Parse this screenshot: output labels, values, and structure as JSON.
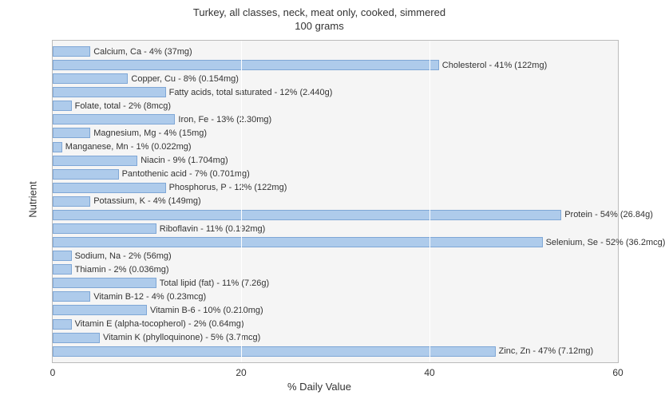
{
  "chart": {
    "type": "bar",
    "title_line1": "Turkey, all classes, neck, meat only, cooked, simmered",
    "title_line2": "100 grams",
    "title_fontsize": 13,
    "x_axis_label": "% Daily Value",
    "y_axis_label": "Nutrient",
    "label_fontsize": 13,
    "xlim": [
      0,
      60
    ],
    "xtick_step": 20,
    "xticks": [
      0,
      20,
      40,
      60
    ],
    "background_color": "#ffffff",
    "plot_background": "#f5f5f5",
    "grid_color": "#ffffff",
    "border_color": "#bbbbbb",
    "bar_fill": "#aecbeb",
    "bar_border": "#7fa7d6",
    "bar_label_fontsize": 11,
    "nutrients": [
      {
        "name": "Calcium, Ca",
        "pct": 4,
        "amount": "37mg",
        "label": "Calcium, Ca - 4% (37mg)"
      },
      {
        "name": "Cholesterol",
        "pct": 41,
        "amount": "122mg",
        "label": "Cholesterol - 41% (122mg)"
      },
      {
        "name": "Copper, Cu",
        "pct": 8,
        "amount": "0.154mg",
        "label": "Copper, Cu - 8% (0.154mg)"
      },
      {
        "name": "Fatty acids, total saturated",
        "pct": 12,
        "amount": "2.440g",
        "label": "Fatty acids, total saturated - 12% (2.440g)"
      },
      {
        "name": "Folate, total",
        "pct": 2,
        "amount": "8mcg",
        "label": "Folate, total - 2% (8mcg)"
      },
      {
        "name": "Iron, Fe",
        "pct": 13,
        "amount": "2.30mg",
        "label": "Iron, Fe - 13% (2.30mg)"
      },
      {
        "name": "Magnesium, Mg",
        "pct": 4,
        "amount": "15mg",
        "label": "Magnesium, Mg - 4% (15mg)"
      },
      {
        "name": "Manganese, Mn",
        "pct": 1,
        "amount": "0.022mg",
        "label": "Manganese, Mn - 1% (0.022mg)"
      },
      {
        "name": "Niacin",
        "pct": 9,
        "amount": "1.704mg",
        "label": "Niacin - 9% (1.704mg)"
      },
      {
        "name": "Pantothenic acid",
        "pct": 7,
        "amount": "0.701mg",
        "label": "Pantothenic acid - 7% (0.701mg)"
      },
      {
        "name": "Phosphorus, P",
        "pct": 12,
        "amount": "122mg",
        "label": "Phosphorus, P - 12% (122mg)"
      },
      {
        "name": "Potassium, K",
        "pct": 4,
        "amount": "149mg",
        "label": "Potassium, K - 4% (149mg)"
      },
      {
        "name": "Protein",
        "pct": 54,
        "amount": "26.84g",
        "label": "Protein - 54% (26.84g)"
      },
      {
        "name": "Riboflavin",
        "pct": 11,
        "amount": "0.192mg",
        "label": "Riboflavin - 11% (0.192mg)"
      },
      {
        "name": "Selenium, Se",
        "pct": 52,
        "amount": "36.2mcg",
        "label": "Selenium, Se - 52% (36.2mcg)"
      },
      {
        "name": "Sodium, Na",
        "pct": 2,
        "amount": "56mg",
        "label": "Sodium, Na - 2% (56mg)"
      },
      {
        "name": "Thiamin",
        "pct": 2,
        "amount": "0.036mg",
        "label": "Thiamin - 2% (0.036mg)"
      },
      {
        "name": "Total lipid (fat)",
        "pct": 11,
        "amount": "7.26g",
        "label": "Total lipid (fat) - 11% (7.26g)"
      },
      {
        "name": "Vitamin B-12",
        "pct": 4,
        "amount": "0.23mcg",
        "label": "Vitamin B-12 - 4% (0.23mcg)"
      },
      {
        "name": "Vitamin B-6",
        "pct": 10,
        "amount": "0.210mg",
        "label": "Vitamin B-6 - 10% (0.210mg)"
      },
      {
        "name": "Vitamin E (alpha-tocopherol)",
        "pct": 2,
        "amount": "0.64mg",
        "label": "Vitamin E (alpha-tocopherol) - 2% (0.64mg)"
      },
      {
        "name": "Vitamin K (phylloquinone)",
        "pct": 5,
        "amount": "3.7mcg",
        "label": "Vitamin K (phylloquinone) - 5% (3.7mcg)"
      },
      {
        "name": "Zinc, Zn",
        "pct": 47,
        "amount": "7.12mg",
        "label": "Zinc, Zn - 47% (7.12mg)"
      }
    ]
  }
}
